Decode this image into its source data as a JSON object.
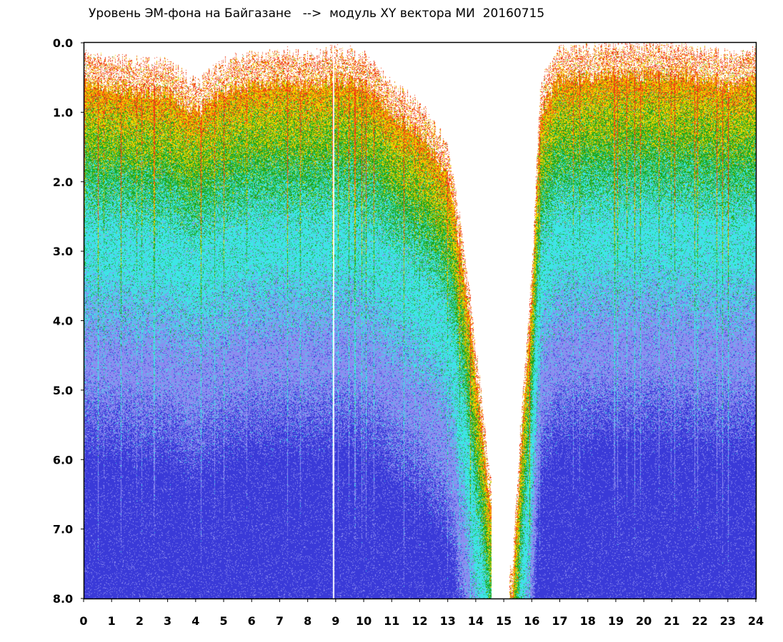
{
  "chart_data": {
    "type": "heatmap",
    "title": "Уровень ЭМ-фона на Байгазане   -->  модуль XY вектора МИ  20160715",
    "xlabel": "",
    "ylabel": "",
    "xlim": [
      0,
      24
    ],
    "ylim": [
      0.0,
      8.0
    ],
    "y_inverted": true,
    "x_tick_labels": [
      "0",
      "1",
      "2",
      "3",
      "4",
      "5",
      "6",
      "7",
      "8",
      "9",
      "10",
      "11",
      "12",
      "13",
      "14",
      "15",
      "16",
      "17",
      "18",
      "19",
      "20",
      "21",
      "22",
      "23",
      "24"
    ],
    "y_tick_labels": [
      "0.0",
      "1.0",
      "2.0",
      "3.0",
      "4.0",
      "5.0",
      "6.0",
      "7.0",
      "8.0"
    ],
    "grid": false,
    "legend": "none",
    "colors": {
      "level_low": "#3a3ad8",
      "level_lowmid": "#8c8cf0",
      "level_mid": "#3de6e6",
      "level_midhigh": "#1ea81e",
      "level_high": "#f2d200",
      "level_peak": "#f03a14"
    },
    "upper_envelope_hours": [
      0,
      1,
      2,
      3,
      4,
      5,
      6,
      7,
      8,
      9,
      10,
      11,
      12,
      13,
      13.5,
      14,
      14.3,
      14.6,
      15,
      15.3,
      15.6,
      16,
      16.3,
      17,
      18,
      19,
      20,
      21,
      22,
      23,
      24
    ],
    "upper_envelope_values": [
      0.2,
      0.25,
      0.3,
      0.3,
      0.6,
      0.3,
      0.2,
      0.15,
      0.2,
      0.1,
      0.2,
      0.6,
      0.9,
      1.5,
      2.7,
      4.4,
      5.5,
      6.5,
      8.0,
      7.5,
      5.5,
      3.2,
      0.6,
      0.1,
      0.1,
      0.05,
      0.05,
      0.05,
      0.1,
      0.2,
      0.1
    ],
    "gap_hours": [
      14.55,
      15.2
    ]
  }
}
